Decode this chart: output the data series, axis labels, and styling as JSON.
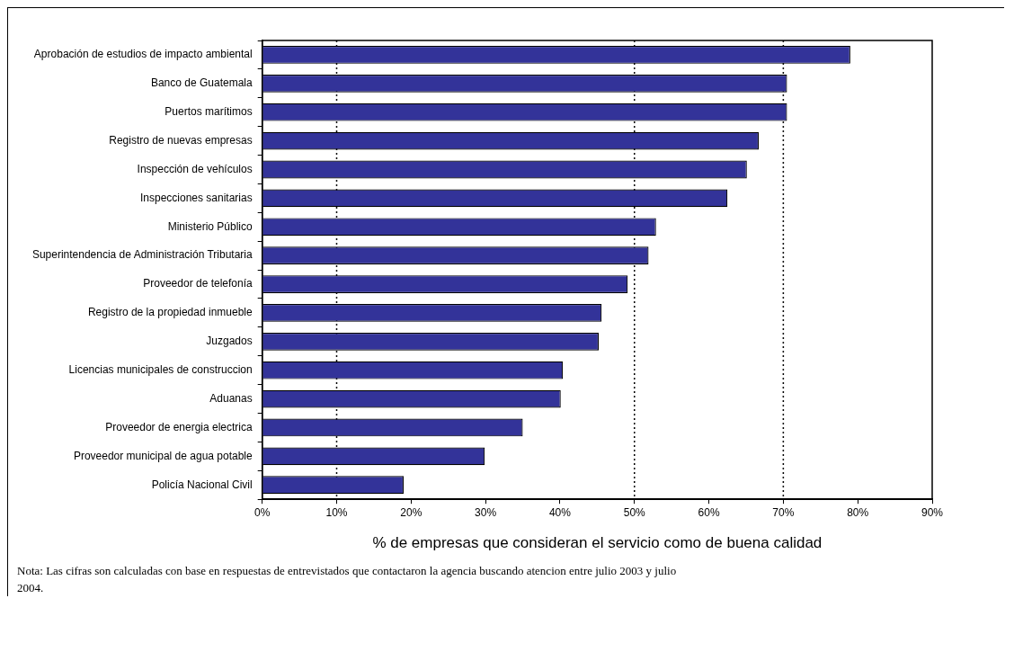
{
  "chart_data": {
    "type": "bar",
    "orientation": "horizontal",
    "categories": [
      "Aprobación de estudios de impacto ambiental",
      "Banco de Guatemala",
      "Puertos marítimos",
      "Registro de nuevas empresas",
      "Inspección de vehículos",
      "Inspecciones sanitarias",
      "Ministerio Público",
      "Superintendencia de Administración Tributaria",
      "Proveedor de telefonía",
      "Registro de la propiedad inmueble",
      "Juzgados",
      "Licencias municipales de construccion",
      "Aduanas",
      "Proveedor de energia electrica",
      "Proveedor municipal de agua potable",
      "Policía Nacional Civil"
    ],
    "values": [
      79,
      70.5,
      70.5,
      66.7,
      65.1,
      62.5,
      52.9,
      51.9,
      49.1,
      45.6,
      45.2,
      40.4,
      40.1,
      35,
      29.9,
      19
    ],
    "color": "#333399",
    "xlim": [
      0,
      90
    ],
    "xticks": [
      {
        "value": 0,
        "label": "0%"
      },
      {
        "value": 10,
        "label": "10%"
      },
      {
        "value": 20,
        "label": "20%"
      },
      {
        "value": 30,
        "label": "30%"
      },
      {
        "value": 40,
        "label": "40%"
      },
      {
        "value": 50,
        "label": "50%"
      },
      {
        "value": 60,
        "label": "60%"
      },
      {
        "value": 70,
        "label": "70%"
      },
      {
        "value": 80,
        "label": "80%"
      },
      {
        "value": 90,
        "label": "90%"
      }
    ],
    "xlabel": "% de empresas que consideran el servicio como de buena calidad",
    "ref_lines": [
      {
        "axis": "x",
        "value": 10,
        "line_style": "dotted",
        "color": "#000000"
      },
      {
        "axis": "x",
        "value": 50,
        "line_style": "dotted",
        "color": "#000000"
      },
      {
        "axis": "x",
        "value": 70,
        "line_style": "dotted",
        "color": "#000000"
      }
    ],
    "grid": false,
    "legend": false,
    "annotations": [
      "Nota: Las cifras son calculadas con base en respuestas de entrevistados que contactaron la agencia buscando atencion entre julio 2003 y julio 2004."
    ]
  }
}
